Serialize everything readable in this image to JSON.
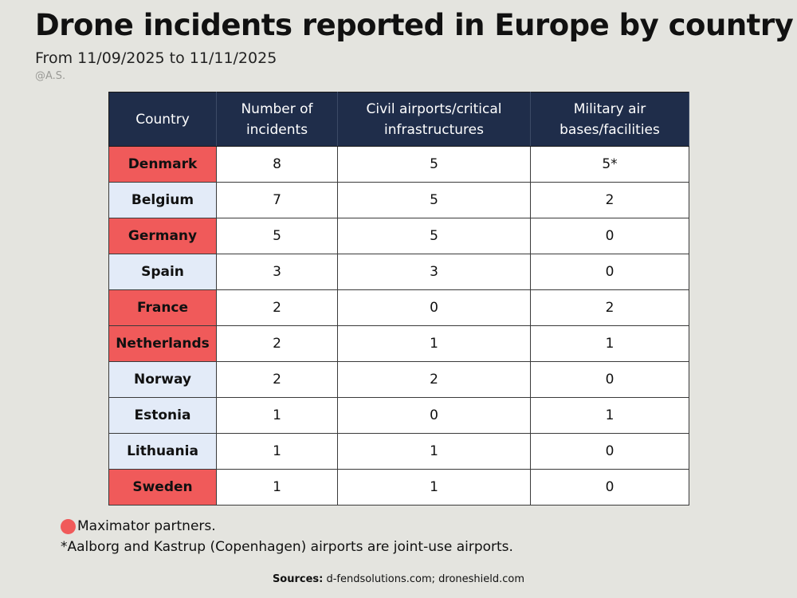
{
  "header": {
    "title": "Drone incidents reported in Europe by country",
    "subtitle": "From 11/09/2025 to 11/11/2025",
    "credit": "@A.S."
  },
  "colors": {
    "header_bg": "#1f2d4a",
    "partner": "#f05a5a",
    "non_partner": "#e3ebf8",
    "background": "#e4e4df"
  },
  "chart_data": {
    "type": "table",
    "columns": [
      "Country",
      "Number of incidents",
      "Civil airports/critical infrastructures",
      "Military air bases/facilities"
    ],
    "rows": [
      {
        "country": "Denmark",
        "incidents": "8",
        "civil": "5",
        "military": "5*",
        "partner": true
      },
      {
        "country": "Belgium",
        "incidents": "7",
        "civil": "5",
        "military": "2",
        "partner": false
      },
      {
        "country": "Germany",
        "incidents": "5",
        "civil": "5",
        "military": "0",
        "partner": true
      },
      {
        "country": "Spain",
        "incidents": "3",
        "civil": "3",
        "military": "0",
        "partner": false
      },
      {
        "country": "France",
        "incidents": "2",
        "civil": "0",
        "military": "2",
        "partner": true
      },
      {
        "country": "Netherlands",
        "incidents": "2",
        "civil": "1",
        "military": "1",
        "partner": true
      },
      {
        "country": "Norway",
        "incidents": "2",
        "civil": "2",
        "military": "0",
        "partner": false
      },
      {
        "country": "Estonia",
        "incidents": "1",
        "civil": "0",
        "military": "1",
        "partner": false
      },
      {
        "country": "Lithuania",
        "incidents": "1",
        "civil": "1",
        "military": "0",
        "partner": false
      },
      {
        "country": "Sweden",
        "incidents": "1",
        "civil": "1",
        "military": "0",
        "partner": true
      }
    ]
  },
  "legend": {
    "partner_label": "Maximator partners."
  },
  "footnote": "*Aalborg and Kastrup (Copenhagen) airports are joint-use airports.",
  "sources": {
    "label": "Sources:",
    "text": " d-fendsolutions.com; droneshield.com"
  }
}
